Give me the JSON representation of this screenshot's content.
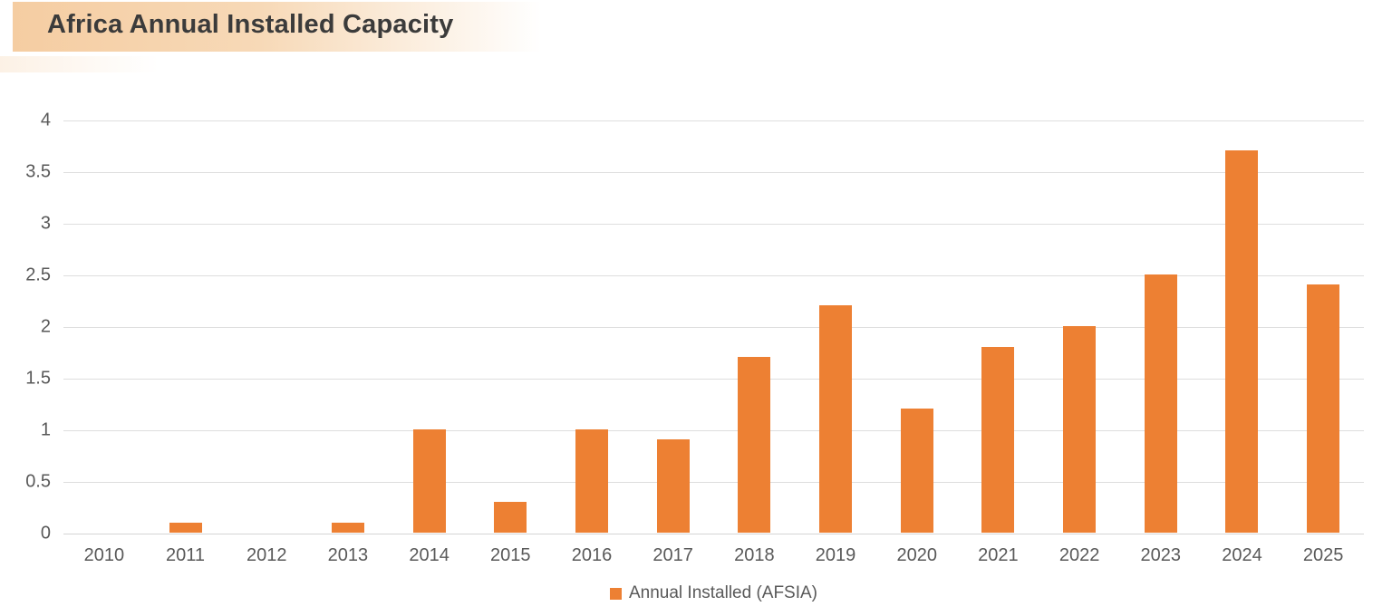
{
  "header": {
    "title": "Africa Annual Installed Capacity"
  },
  "chart_data": {
    "type": "bar",
    "title": "Africa Annual Installed Capacity",
    "categories": [
      "2010",
      "2011",
      "2012",
      "2013",
      "2014",
      "2015",
      "2016",
      "2017",
      "2018",
      "2019",
      "2020",
      "2021",
      "2022",
      "2023",
      "2024",
      "2025"
    ],
    "series": [
      {
        "name": "Annual Installed (AFSIA)",
        "values": [
          0,
          0.1,
          0,
          0.1,
          1.0,
          0.3,
          1.0,
          0.9,
          1.7,
          2.2,
          1.2,
          1.8,
          2.0,
          2.5,
          3.7,
          2.4
        ]
      }
    ],
    "series_name": "Annual Installed (AFSIA)",
    "xlabel": "",
    "ylabel": "",
    "ylim": [
      0,
      4
    ],
    "ytick_step": 0.5,
    "ytick_labels": [
      "0",
      "0.5",
      "1",
      "1.5",
      "2",
      "2.5",
      "3",
      "3.5",
      "4"
    ],
    "grid": true,
    "legend_position": "bottom",
    "bar_color": "#ED8033",
    "axis_text_color": "#595959",
    "gridline_color": "#DEDEDE",
    "baseline_color": "#D4D4D4"
  },
  "legend": {
    "label": "Annual Installed (AFSIA)",
    "swatch_color": "#ED8033"
  },
  "banner": {
    "gradient_start_color": "#F5CDA2",
    "title_text_color": "#3B3B3B"
  }
}
